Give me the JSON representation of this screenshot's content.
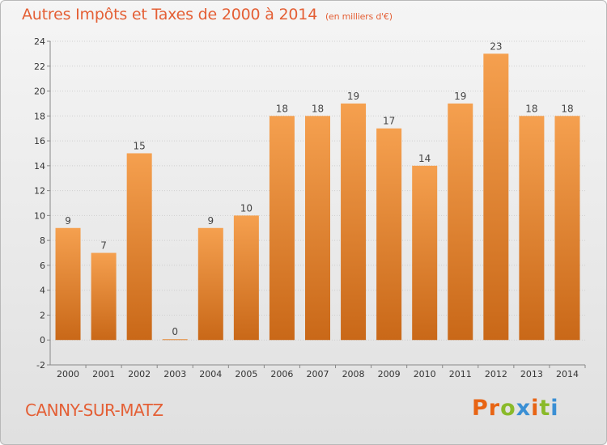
{
  "header": {
    "title": "Autres Impôts et Taxes de 2000 à 2014",
    "unit": "(en milliers d'€)"
  },
  "footer": {
    "commune": "CANNY-SUR-MATZ",
    "brand": [
      "P",
      "r",
      "o",
      "x",
      "i",
      "t",
      "i"
    ]
  },
  "colors": {
    "title": "#e45f35",
    "bar_light": "#f5a04f",
    "bar_dark": "#c96818",
    "brand": [
      "#e86414",
      "#e86414",
      "#8aba2a",
      "#3a8fd4",
      "#e86414",
      "#8aba2a",
      "#3a8fd4"
    ]
  },
  "chart_data": {
    "type": "bar",
    "title": "Autres Impôts et Taxes de 2000 à 2014",
    "categories": [
      "2000",
      "2001",
      "2002",
      "2003",
      "2004",
      "2005",
      "2006",
      "2007",
      "2008",
      "2009",
      "2010",
      "2011",
      "2012",
      "2013",
      "2014"
    ],
    "values": [
      9,
      7,
      15,
      0,
      9,
      10,
      18,
      18,
      19,
      17,
      14,
      19,
      23,
      18,
      18
    ],
    "ylim": [
      -2,
      24
    ],
    "yticks": [
      -2,
      0,
      2,
      4,
      6,
      8,
      10,
      12,
      14,
      16,
      18,
      20,
      22,
      24
    ],
    "xlabel": "",
    "ylabel": "",
    "grid": true
  }
}
